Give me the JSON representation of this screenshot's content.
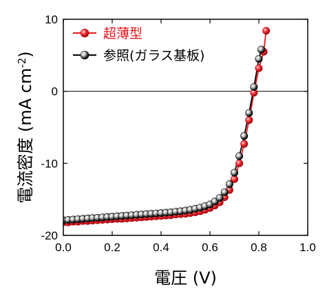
{
  "chart_data": {
    "type": "scatter",
    "xlabel": "電圧 (V)",
    "ylabel_main": "電流密度 (mA cm",
    "ylabel_sup": "-2",
    "ylabel_end": ")",
    "xlim": [
      0.0,
      1.0
    ],
    "ylim": [
      -20,
      10
    ],
    "xticks": [
      0.0,
      0.2,
      0.4,
      0.6,
      0.8,
      1.0
    ],
    "xtick_labels": [
      "0.0",
      "0.2",
      "0.4",
      "0.6",
      "0.8",
      "1.0"
    ],
    "yticks": [
      -20,
      -10,
      0,
      10
    ],
    "ytick_labels": [
      "-20",
      "-10",
      "0",
      "10"
    ],
    "zero_line": true,
    "grid": false,
    "legend_position": "top-left",
    "series": [
      {
        "name": "超薄型",
        "color": "#e8141c",
        "x": [
          0.0,
          0.02,
          0.04,
          0.06,
          0.08,
          0.1,
          0.12,
          0.14,
          0.16,
          0.18,
          0.2,
          0.22,
          0.24,
          0.26,
          0.28,
          0.3,
          0.32,
          0.34,
          0.36,
          0.38,
          0.4,
          0.42,
          0.44,
          0.46,
          0.48,
          0.5,
          0.52,
          0.54,
          0.56,
          0.58,
          0.6,
          0.62,
          0.64,
          0.66,
          0.68,
          0.7,
          0.72,
          0.74,
          0.76,
          0.78,
          0.8,
          0.82,
          0.83
        ],
        "y": [
          -18.2,
          -18.2,
          -18.1,
          -18.1,
          -18.0,
          -18.0,
          -17.95,
          -17.9,
          -17.85,
          -17.8,
          -17.75,
          -17.7,
          -17.7,
          -17.65,
          -17.6,
          -17.55,
          -17.5,
          -17.45,
          -17.4,
          -17.35,
          -17.3,
          -17.25,
          -17.2,
          -17.1,
          -17.05,
          -17.0,
          -16.9,
          -16.8,
          -16.65,
          -16.45,
          -16.2,
          -15.85,
          -15.4,
          -14.7,
          -13.7,
          -12.2,
          -10.0,
          -7.3,
          -4.0,
          -0.2,
          3.2,
          5.5,
          8.4
        ]
      },
      {
        "name": "参照(ガラス基板)",
        "color": "#000000",
        "x": [
          0.0,
          0.02,
          0.04,
          0.06,
          0.08,
          0.1,
          0.12,
          0.14,
          0.16,
          0.18,
          0.2,
          0.22,
          0.24,
          0.26,
          0.28,
          0.3,
          0.32,
          0.34,
          0.36,
          0.38,
          0.4,
          0.42,
          0.44,
          0.46,
          0.48,
          0.5,
          0.52,
          0.54,
          0.56,
          0.58,
          0.6,
          0.62,
          0.64,
          0.66,
          0.68,
          0.7,
          0.72,
          0.74,
          0.76,
          0.78,
          0.8,
          0.81
        ],
        "y": [
          -17.9,
          -17.85,
          -17.8,
          -17.75,
          -17.7,
          -17.65,
          -17.6,
          -17.55,
          -17.5,
          -17.45,
          -17.4,
          -17.35,
          -17.3,
          -17.25,
          -17.2,
          -17.15,
          -17.1,
          -17.05,
          -17.0,
          -16.95,
          -16.9,
          -16.85,
          -16.8,
          -16.7,
          -16.65,
          -16.55,
          -16.45,
          -16.3,
          -16.15,
          -15.95,
          -15.7,
          -15.3,
          -14.8,
          -14.0,
          -12.9,
          -11.3,
          -9.0,
          -6.2,
          -3.0,
          0.6,
          4.5,
          5.8
        ]
      }
    ]
  }
}
